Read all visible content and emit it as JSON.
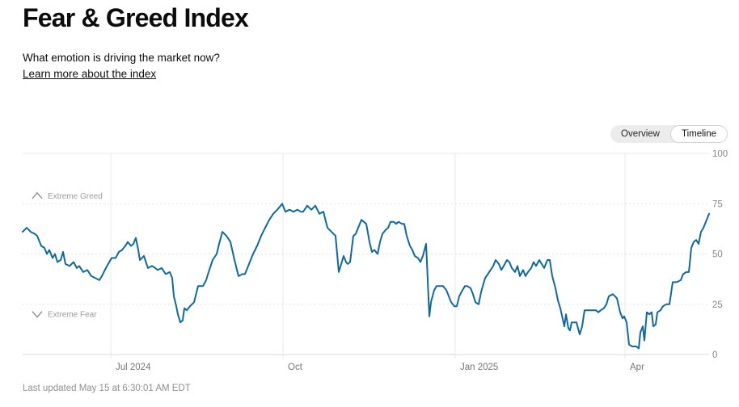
{
  "header": {
    "title": "Fear & Greed Index",
    "subtitle": "What emotion is driving the market now?",
    "link_label": "Learn more about the index"
  },
  "toggle": {
    "options": [
      {
        "label": "Overview",
        "selected": false
      },
      {
        "label": "Timeline",
        "selected": true
      }
    ]
  },
  "footer": {
    "last_updated": "Last updated May 15 at 6:30:01 AM EDT"
  },
  "colors": {
    "line": "#0e699e",
    "gridline": "#e8e8e8",
    "gridline_dashed": "#e2e2e2",
    "axis_bottom": "#d8d8d8",
    "axis_text": "#858585",
    "x_tick_text": "#757575",
    "zone_text": "#9b9b9b",
    "zone_icon": "#8f8f8f",
    "toggle_bg": "#ececec",
    "toggle_selected_bg": "#ffffff",
    "toggle_selected_border": "#d3d3d3"
  },
  "chart_data": {
    "type": "line",
    "title": "Fear & Greed Index over the last year",
    "x_axis": {
      "range_note": "approx. 2024-05-15 to 2025-05-15, daily values",
      "axis_length": 849,
      "unit": "linear time position along axis (0 = left edge ~mid-May 2024, 849 = right edge ~May 15 2025)",
      "tick_labels": [
        "Jul 2024",
        "Oct",
        "Jan 2025",
        "Apr"
      ],
      "tick_offsets": [
        109,
        322,
        535,
        745
      ]
    },
    "y_axis": {
      "range": [
        0,
        100
      ],
      "tick_values": [
        100,
        75,
        50,
        25,
        0
      ],
      "tick_labels": [
        "100",
        "75",
        "50",
        "25",
        "0"
      ],
      "dashed_gridline_values": [
        75,
        50,
        25
      ],
      "position": "right"
    },
    "zone_labels": [
      {
        "label": "Extreme Greed",
        "icon": "chevron-up-icon",
        "at_value": 79
      },
      {
        "label": "Extreme Fear",
        "icon": "chevron-down-icon",
        "at_value": 20
      }
    ],
    "legend": "none",
    "grid": "horizontal dashed at 25/50/75, vertical solid at month ticks",
    "points": [
      [
        0,
        61
      ],
      [
        5,
        63
      ],
      [
        10,
        61
      ],
      [
        15,
        60
      ],
      [
        18,
        59
      ],
      [
        23,
        54
      ],
      [
        27,
        53
      ],
      [
        30,
        50
      ],
      [
        33,
        52
      ],
      [
        37,
        48
      ],
      [
        40,
        50
      ],
      [
        43,
        46
      ],
      [
        47,
        47
      ],
      [
        50,
        51
      ],
      [
        53,
        45
      ],
      [
        58,
        44
      ],
      [
        63,
        46
      ],
      [
        67,
        43
      ],
      [
        70,
        44
      ],
      [
        75,
        41
      ],
      [
        80,
        42
      ],
      [
        85,
        39
      ],
      [
        90,
        38
      ],
      [
        95,
        37
      ],
      [
        98,
        39
      ],
      [
        103,
        43
      ],
      [
        110,
        48
      ],
      [
        115,
        48
      ],
      [
        119,
        51
      ],
      [
        123,
        52
      ],
      [
        127,
        54
      ],
      [
        130,
        56
      ],
      [
        134,
        54
      ],
      [
        137,
        55
      ],
      [
        140,
        58
      ],
      [
        143,
        52
      ],
      [
        145,
        47
      ],
      [
        150,
        49
      ],
      [
        155,
        43
      ],
      [
        160,
        44
      ],
      [
        164,
        43
      ],
      [
        167,
        42
      ],
      [
        172,
        43
      ],
      [
        177,
        40
      ],
      [
        182,
        41
      ],
      [
        185,
        38
      ],
      [
        187,
        29
      ],
      [
        190,
        24
      ],
      [
        192,
        20
      ],
      [
        195,
        16
      ],
      [
        198,
        17
      ],
      [
        200,
        23
      ],
      [
        203,
        22
      ],
      [
        207,
        24
      ],
      [
        212,
        26
      ],
      [
        217,
        34
      ],
      [
        223,
        34
      ],
      [
        227,
        37
      ],
      [
        230,
        41
      ],
      [
        235,
        47
      ],
      [
        240,
        50
      ],
      [
        243,
        55
      ],
      [
        247,
        61
      ],
      [
        252,
        59
      ],
      [
        257,
        56
      ],
      [
        262,
        47
      ],
      [
        267,
        39
      ],
      [
        272,
        40
      ],
      [
        275,
        40
      ],
      [
        280,
        45
      ],
      [
        285,
        50
      ],
      [
        290,
        54
      ],
      [
        295,
        59
      ],
      [
        300,
        63
      ],
      [
        305,
        67
      ],
      [
        310,
        70
      ],
      [
        315,
        72
      ],
      [
        321,
        75
      ],
      [
        325,
        71
      ],
      [
        330,
        72
      ],
      [
        335,
        71
      ],
      [
        340,
        72
      ],
      [
        344,
        71
      ],
      [
        347,
        71
      ],
      [
        352,
        74
      ],
      [
        357,
        72
      ],
      [
        362,
        74
      ],
      [
        367,
        70
      ],
      [
        372,
        71
      ],
      [
        377,
        63
      ],
      [
        382,
        61
      ],
      [
        387,
        59
      ],
      [
        391,
        41
      ],
      [
        394,
        45
      ],
      [
        397,
        49
      ],
      [
        400,
        46
      ],
      [
        402,
        45
      ],
      [
        405,
        46
      ],
      [
        409,
        59
      ],
      [
        412,
        60
      ],
      [
        415,
        63
      ],
      [
        419,
        67
      ],
      [
        422,
        66
      ],
      [
        425,
        65
      ],
      [
        429,
        56
      ],
      [
        432,
        51
      ],
      [
        435,
        52
      ],
      [
        439,
        50
      ],
      [
        442,
        56
      ],
      [
        445,
        60
      ],
      [
        449,
        62
      ],
      [
        452,
        63
      ],
      [
        455,
        66
      ],
      [
        459,
        66
      ],
      [
        462,
        65
      ],
      [
        465,
        66
      ],
      [
        469,
        65
      ],
      [
        472,
        65
      ],
      [
        475,
        59
      ],
      [
        479,
        54
      ],
      [
        482,
        52
      ],
      [
        485,
        49
      ],
      [
        489,
        48
      ],
      [
        492,
        46
      ],
      [
        495,
        49
      ],
      [
        499,
        55
      ],
      [
        503,
        19
      ],
      [
        505,
        26
      ],
      [
        509,
        32
      ],
      [
        512,
        34
      ],
      [
        517,
        34
      ],
      [
        520,
        34
      ],
      [
        524,
        32
      ],
      [
        527,
        29
      ],
      [
        530,
        26
      ],
      [
        534,
        24
      ],
      [
        537,
        24
      ],
      [
        540,
        29
      ],
      [
        544,
        32
      ],
      [
        547,
        34
      ],
      [
        550,
        34
      ],
      [
        554,
        33
      ],
      [
        557,
        30
      ],
      [
        560,
        26
      ],
      [
        564,
        25
      ],
      [
        567,
        31
      ],
      [
        572,
        38
      ],
      [
        577,
        41
      ],
      [
        582,
        44
      ],
      [
        585,
        47
      ],
      [
        589,
        45
      ],
      [
        592,
        42
      ],
      [
        595,
        44
      ],
      [
        599,
        47
      ],
      [
        602,
        46
      ],
      [
        605,
        43
      ],
      [
        609,
        41
      ],
      [
        612,
        44
      ],
      [
        615,
        39
      ],
      [
        619,
        42
      ],
      [
        622,
        39
      ],
      [
        625,
        41
      ],
      [
        629,
        43
      ],
      [
        632,
        46
      ],
      [
        635,
        44
      ],
      [
        639,
        47
      ],
      [
        642,
        45
      ],
      [
        645,
        43
      ],
      [
        649,
        47
      ],
      [
        652,
        47
      ],
      [
        655,
        39
      ],
      [
        659,
        33
      ],
      [
        662,
        27
      ],
      [
        665,
        23
      ],
      [
        670,
        14
      ],
      [
        672,
        20
      ],
      [
        675,
        13
      ],
      [
        677,
        12
      ],
      [
        679,
        16
      ],
      [
        682,
        16
      ],
      [
        685,
        16
      ],
      [
        689,
        10
      ],
      [
        692,
        14
      ],
      [
        695,
        22
      ],
      [
        699,
        22
      ],
      [
        702,
        22
      ],
      [
        705,
        22
      ],
      [
        709,
        22
      ],
      [
        712,
        21
      ],
      [
        715,
        22
      ],
      [
        719,
        23
      ],
      [
        722,
        25
      ],
      [
        725,
        29
      ],
      [
        730,
        30
      ],
      [
        735,
        28
      ],
      [
        739,
        21
      ],
      [
        742,
        18
      ],
      [
        744,
        19
      ],
      [
        747,
        16
      ],
      [
        750,
        5
      ],
      [
        754,
        4
      ],
      [
        759,
        4
      ],
      [
        762,
        3
      ],
      [
        764,
        11
      ],
      [
        767,
        14
      ],
      [
        769,
        7
      ],
      [
        772,
        21
      ],
      [
        775,
        20
      ],
      [
        778,
        21
      ],
      [
        780,
        14
      ],
      [
        783,
        15
      ],
      [
        785,
        21
      ],
      [
        789,
        22
      ],
      [
        792,
        24
      ],
      [
        796,
        25
      ],
      [
        800,
        25
      ],
      [
        804,
        36
      ],
      [
        809,
        36
      ],
      [
        814,
        37
      ],
      [
        817,
        40
      ],
      [
        821,
        41
      ],
      [
        824,
        41
      ],
      [
        827,
        53
      ],
      [
        830,
        56
      ],
      [
        833,
        57
      ],
      [
        836,
        55
      ],
      [
        839,
        61
      ],
      [
        842,
        63
      ],
      [
        845,
        66
      ],
      [
        849,
        70
      ]
    ],
    "last_value": 70
  }
}
